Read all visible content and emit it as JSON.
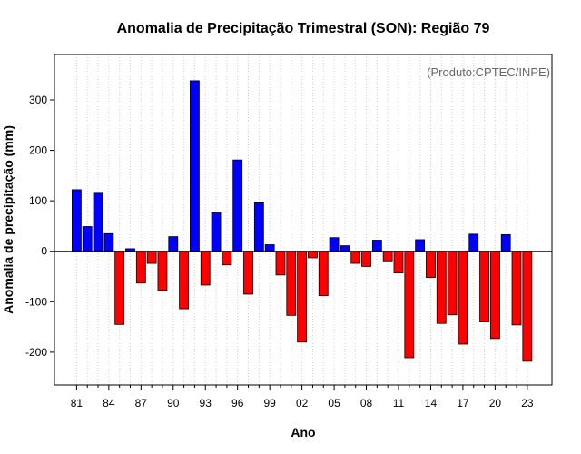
{
  "chart_data": {
    "type": "bar",
    "title": "Anomalia de Precipitação Trimestral (SON): Região 79",
    "annotation": "(Produto:CPTEC/INPE)",
    "xlabel": "Ano",
    "ylabel": "Anomalia de precipitação (mm)",
    "ylim": [
      -265,
      390
    ],
    "yticks": [
      -200,
      -100,
      0,
      100,
      200,
      300
    ],
    "x_tick_labels": [
      "81",
      "84",
      "87",
      "90",
      "93",
      "96",
      "99",
      "02",
      "05",
      "08",
      "11",
      "14",
      "17",
      "20",
      "23"
    ],
    "x_tick_every": 3,
    "grid": "vertical dotted per year",
    "colors": {
      "positive": "#0000ff",
      "negative": "#ff0000",
      "outline": "#000000",
      "grid": "#d3d3d3"
    },
    "categories": [
      "1981",
      "1982",
      "1983",
      "1984",
      "1985",
      "1986",
      "1987",
      "1988",
      "1989",
      "1990",
      "1991",
      "1992",
      "1993",
      "1994",
      "1995",
      "1996",
      "1997",
      "1998",
      "1999",
      "2000",
      "2001",
      "2002",
      "2003",
      "2004",
      "2005",
      "2006",
      "2007",
      "2008",
      "2009",
      "2010",
      "2011",
      "2012",
      "2013",
      "2014",
      "2015",
      "2016",
      "2017",
      "2018",
      "2019",
      "2020",
      "2021",
      "2022",
      "2023"
    ],
    "values": [
      122,
      49,
      115,
      35,
      -145,
      5,
      -63,
      -24,
      -77,
      29,
      -114,
      338,
      -67,
      76,
      -27,
      181,
      -85,
      96,
      13,
      -47,
      -127,
      -180,
      -13,
      -88,
      27,
      11,
      -24,
      -30,
      22,
      -19,
      -43,
      -211,
      23,
      -52,
      -143,
      -126,
      -184,
      34,
      -140,
      -173,
      33,
      -146,
      -218
    ]
  }
}
